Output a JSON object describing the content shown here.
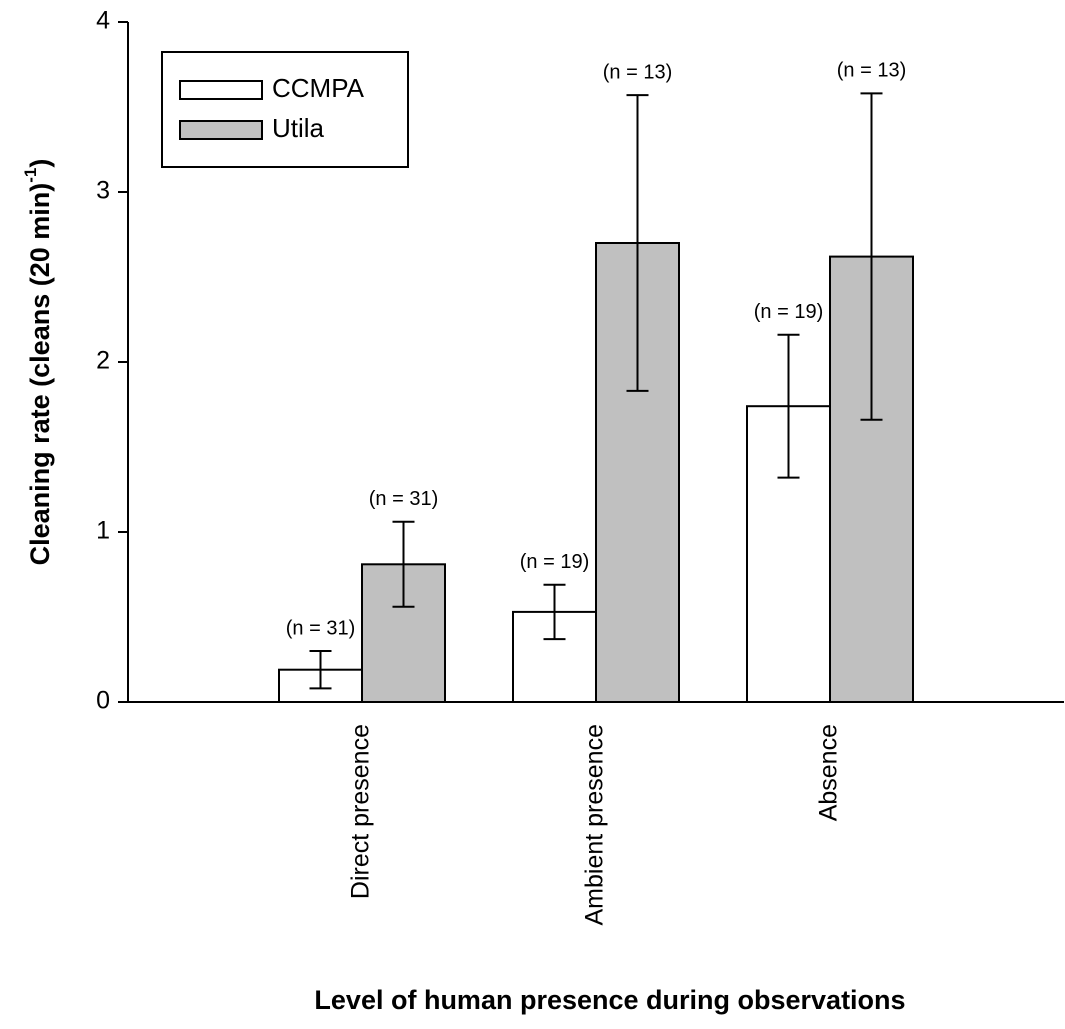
{
  "chart_data": {
    "type": "bar",
    "x_label": "Level of human presence during observations",
    "y_label": "Cleaning rate (cleans (20 min)",
    "y_label_sup": "-1",
    "y_label_end": ")",
    "categories": [
      "Direct presence",
      "Ambient presence",
      "Absence"
    ],
    "series": [
      {
        "name": "CCMPA",
        "color": "#ffffff",
        "values": [
          0.19,
          0.53,
          1.74
        ],
        "errors": [
          0.11,
          0.16,
          0.42
        ],
        "n_labels": [
          "(n = 31)",
          "(n = 19)",
          "(n = 19)"
        ]
      },
      {
        "name": "Utila",
        "color": "#c0c0c0",
        "values": [
          0.81,
          2.7,
          2.62
        ],
        "errors": [
          0.25,
          0.87,
          0.96
        ],
        "n_labels": [
          "(n = 31)",
          "(n = 13)",
          "(n = 13)"
        ]
      }
    ],
    "ylim": [
      0,
      4
    ],
    "yticks": [
      0,
      1,
      2,
      3,
      4
    ],
    "legend": "upper left"
  }
}
